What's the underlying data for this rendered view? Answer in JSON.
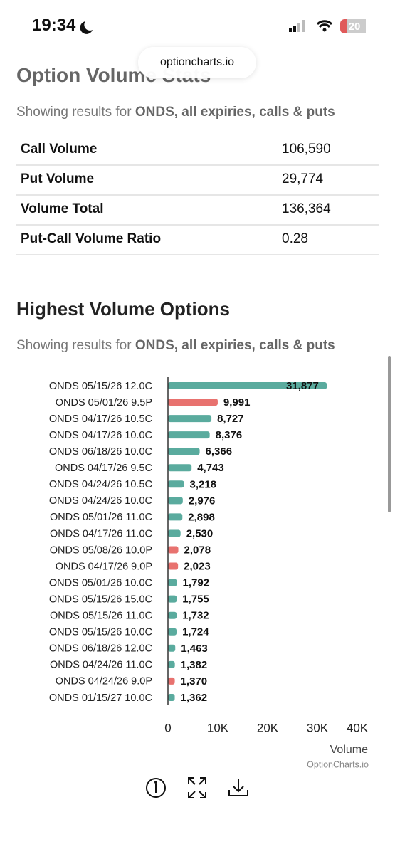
{
  "status_bar": {
    "time": "19:34",
    "battery": "20"
  },
  "url": "optioncharts.io",
  "stats": {
    "title": "Option Volume Stats",
    "subtitle_lead": "Showing results for",
    "subtitle_bold": "ONDS, all expiries, calls & puts",
    "rows": [
      [
        "Call Volume",
        "106,590"
      ],
      [
        "Put Volume",
        "29,774"
      ],
      [
        "Volume Total",
        "136,364"
      ],
      [
        "Put-Call Volume Ratio",
        "0.28"
      ]
    ]
  },
  "chart_data": {
    "type": "hbar",
    "title": "Highest Volume Options",
    "subtitle_lead": "Showing results for",
    "subtitle_bold": "ONDS, all expiries, calls & puts",
    "categories": [
      "ONDS 05/15/26 12.0C",
      "ONDS 05/01/26 9.5P",
      "ONDS 04/17/26 10.5C",
      "ONDS 04/17/26 10.0C",
      "ONDS 06/18/26 10.0C",
      "ONDS 04/17/26 9.5C",
      "ONDS 04/24/26 10.5C",
      "ONDS 04/24/26 10.0C",
      "ONDS 05/01/26 11.0C",
      "ONDS 04/17/26 11.0C",
      "ONDS 05/08/26 10.0P",
      "ONDS 04/17/26 9.0P",
      "ONDS 05/01/26 10.0C",
      "ONDS 05/15/26 15.0C",
      "ONDS 05/15/26 11.0C",
      "ONDS 05/15/26 10.0C",
      "ONDS 06/18/26 12.0C",
      "ONDS 04/24/26 11.0C",
      "ONDS 04/24/26 9.0P",
      "ONDS 01/15/27 10.0C"
    ],
    "values": [
      31877,
      9991,
      8727,
      8376,
      6366,
      4743,
      3218,
      2976,
      2898,
      2530,
      2078,
      2023,
      1792,
      1755,
      1732,
      1724,
      1463,
      1382,
      1370,
      1362
    ],
    "value_labels": [
      "31,877",
      "9,991",
      "8,727",
      "8,376",
      "6,366",
      "4,743",
      "3,218",
      "2,976",
      "2,898",
      "2,530",
      "2,078",
      "2,023",
      "1,792",
      "1,755",
      "1,732",
      "1,724",
      "1,463",
      "1,382",
      "1,370",
      "1,362"
    ],
    "colors": [
      "#5aab9e",
      "#e8726f",
      "#5aab9e",
      "#5aab9e",
      "#5aab9e",
      "#5aab9e",
      "#5aab9e",
      "#5aab9e",
      "#5aab9e",
      "#5aab9e",
      "#e8726f",
      "#e8726f",
      "#5aab9e",
      "#5aab9e",
      "#5aab9e",
      "#5aab9e",
      "#5aab9e",
      "#5aab9e",
      "#e8726f",
      "#5aab9e"
    ],
    "xlim": [
      0,
      40000
    ],
    "xticks": [
      0,
      {
        "value": 10000,
        "label": "10K"
      },
      {
        "value": 20000,
        "label": "20K"
      },
      {
        "value": 30000,
        "label": "30K"
      },
      {
        "value": 40000,
        "label": "40K"
      }
    ],
    "x_label": "Volume",
    "credit": "OptionCharts.io"
  }
}
